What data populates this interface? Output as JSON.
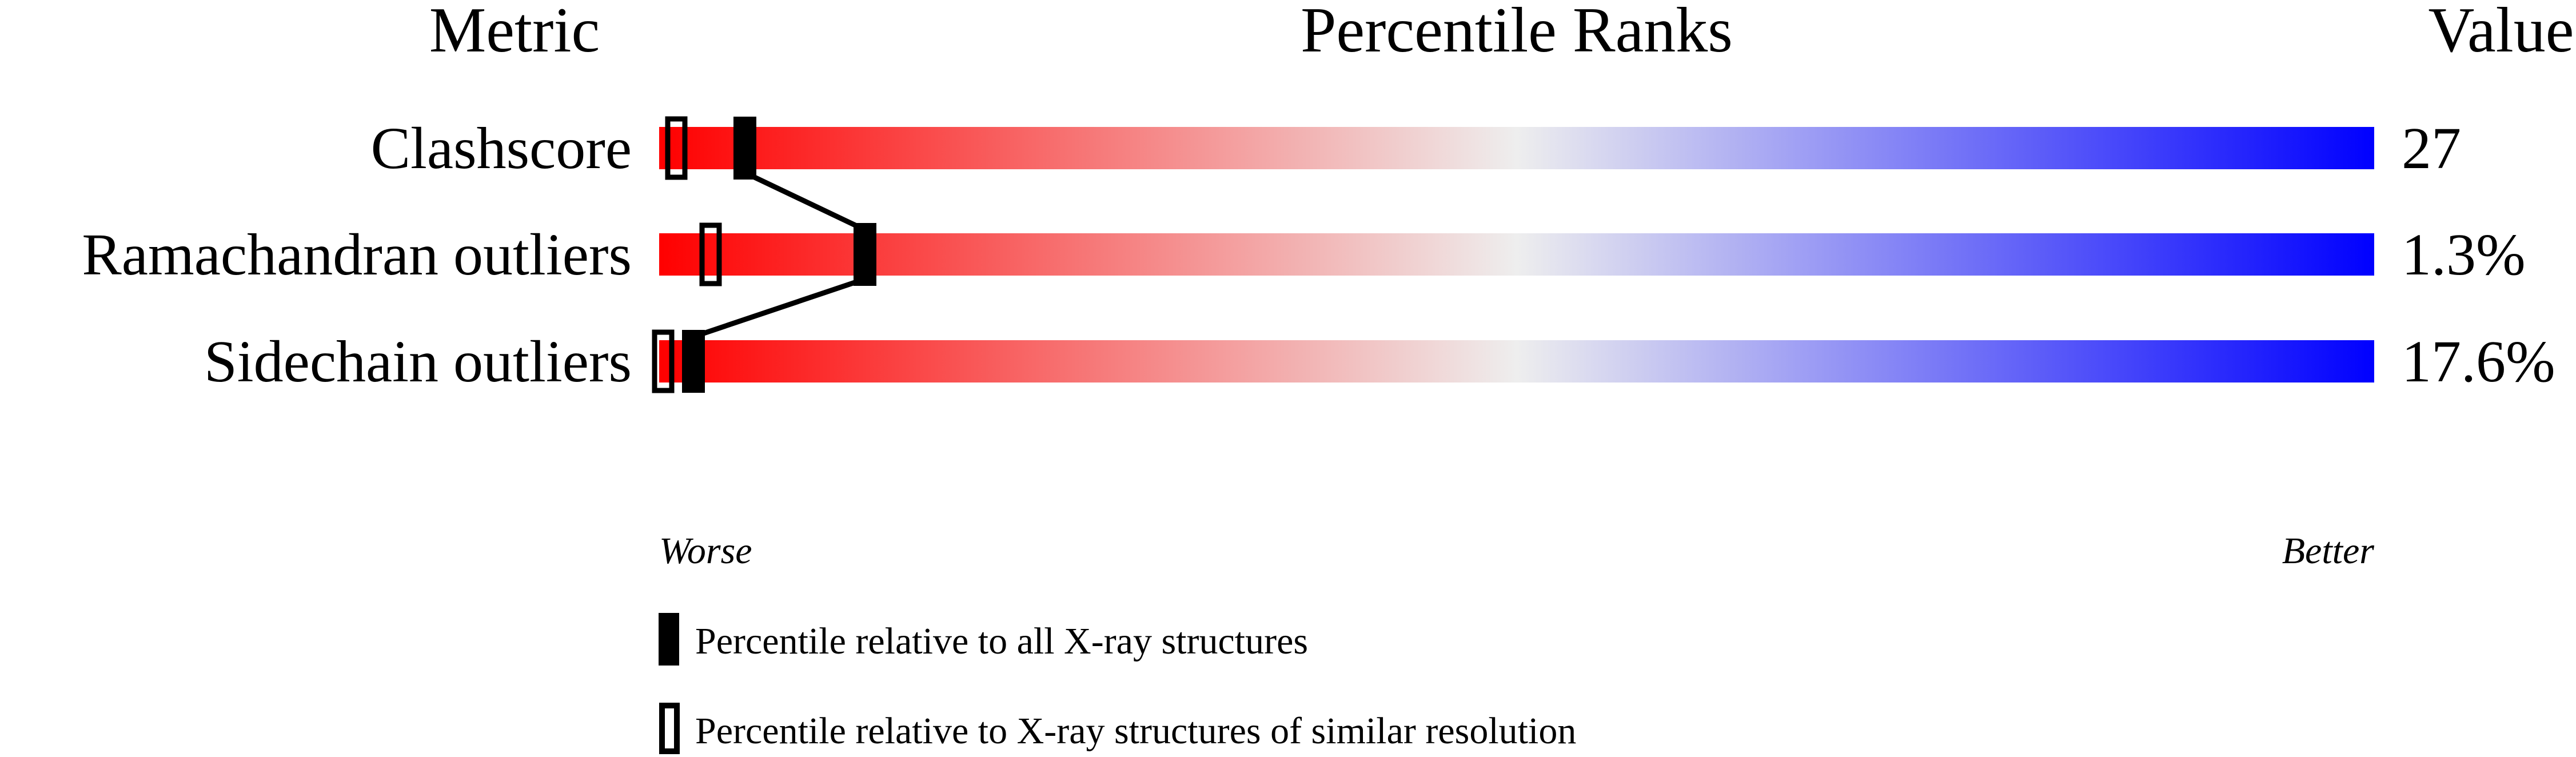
{
  "chart_data": {
    "type": "bar",
    "headers": {
      "metric": "Metric",
      "percentile": "Percentile Ranks",
      "value": "Value"
    },
    "xlim": [
      0,
      100
    ],
    "metrics": [
      {
        "name": "Clashscore",
        "value": "27",
        "percentile_all": 5,
        "percentile_similar": 1
      },
      {
        "name": "Ramachandran outliers",
        "value": "1.3%",
        "percentile_all": 12,
        "percentile_similar": 3
      },
      {
        "name": "Sidechain outliers",
        "value": "17.6%",
        "percentile_all": 2,
        "percentile_similar": 0
      }
    ],
    "axis_labels": {
      "left": "Worse",
      "right": "Better"
    },
    "legend": [
      {
        "marker": "filled",
        "label": "Percentile relative to all X-ray structures"
      },
      {
        "marker": "open",
        "label": "Percentile relative to X-ray structures of similar resolution"
      }
    ],
    "colors": {
      "worse": "#ff0000",
      "middle": "#eeeeee",
      "better": "#0000ff",
      "marker": "#000000"
    }
  }
}
